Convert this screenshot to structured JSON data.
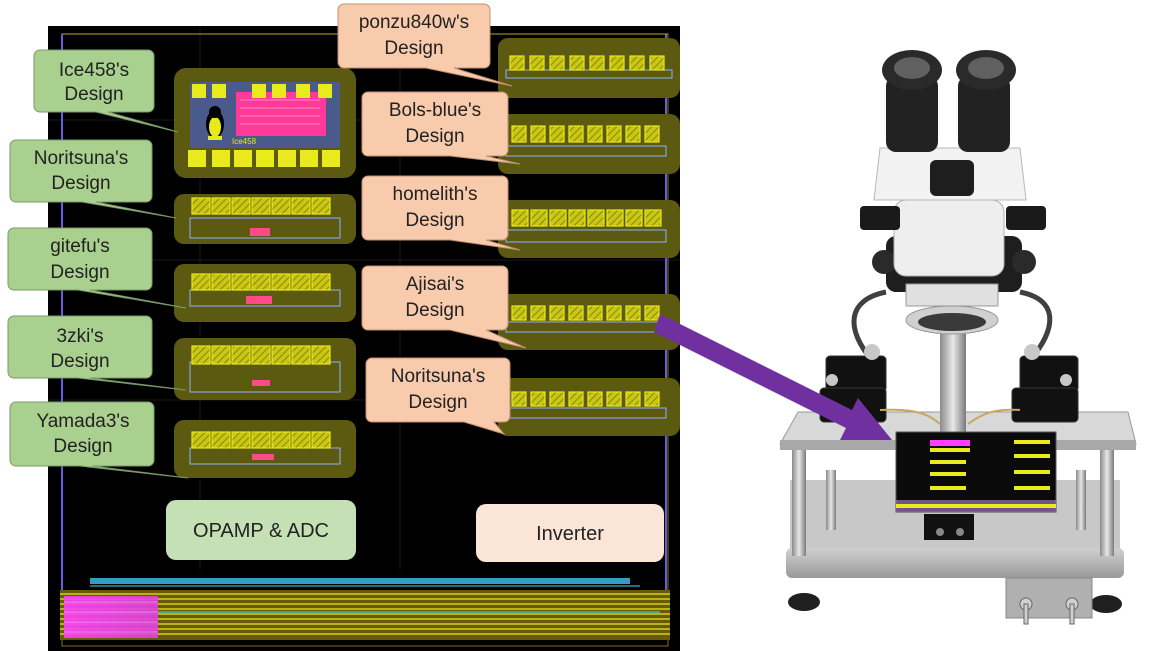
{
  "colors": {
    "chip_bg": "#000000",
    "block_fill": "#5c5a10",
    "pad_yellow": "#e8ea1c",
    "callout_green": "#a9d08e",
    "callout_peach": "#f8cbad",
    "box_green": "#c5e0b4",
    "box_peach": "#fbe5d6",
    "arrow_purple": "#7030a0"
  },
  "left_callouts": [
    {
      "line1": "Ice458's",
      "line2": "Design"
    },
    {
      "line1": "Noritsuna's",
      "line2": "Design"
    },
    {
      "line1": "gitefu's",
      "line2": "Design"
    },
    {
      "line1": "3zki's",
      "line2": "Design"
    },
    {
      "line1": "Yamada3's",
      "line2": "Design"
    }
  ],
  "right_callouts": [
    {
      "line1": "ponzu840w's",
      "line2": "Design"
    },
    {
      "line1": "Bols-blue's",
      "line2": "Design"
    },
    {
      "line1": "homelith's",
      "line2": "Design"
    },
    {
      "line1": "Ajisai's",
      "line2": "Design"
    },
    {
      "line1": "Noritsuna's",
      "line2": "Design"
    }
  ],
  "group_labels": {
    "left": "OPAMP & ADC",
    "right": "Inverter"
  },
  "logo_text": "Ice458",
  "icons": {
    "arrow": "purple-pointer-arrow",
    "microscope": "stereo-microscope-probe-station"
  }
}
